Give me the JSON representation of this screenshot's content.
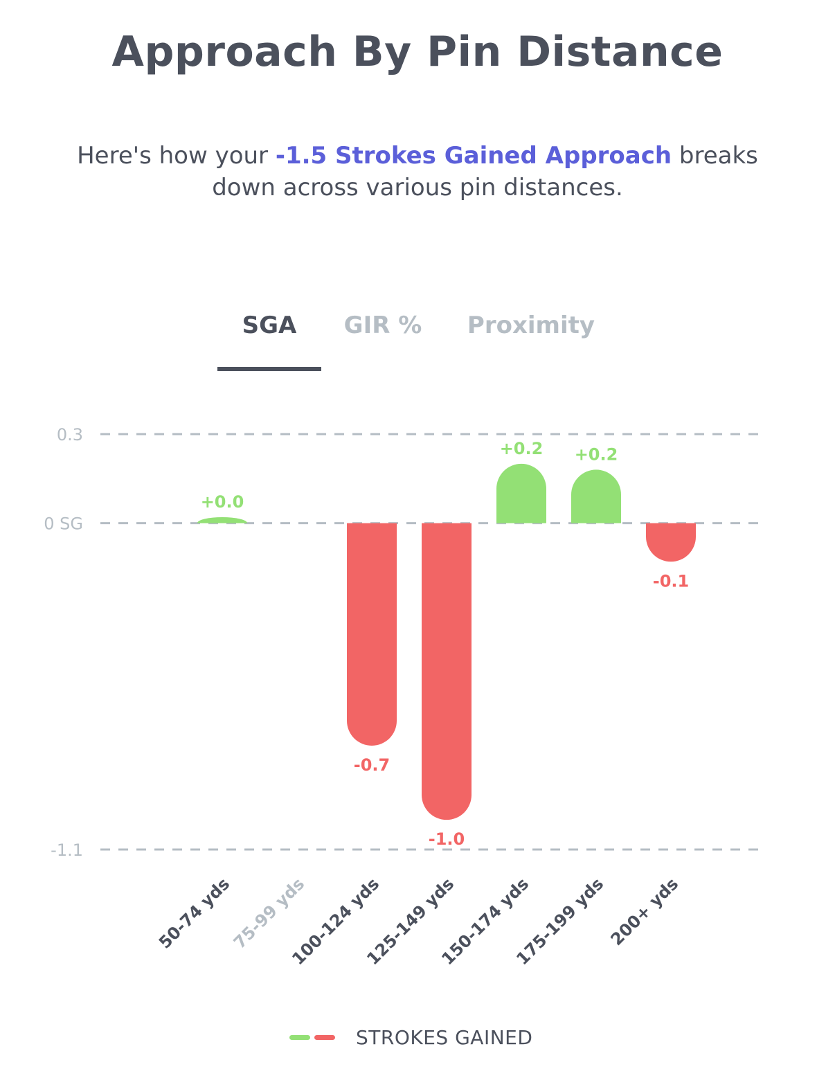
{
  "header": {
    "title": "Approach By Pin Distance",
    "subtitle_pre": "Here's how your ",
    "subtitle_highlight": "-1.5 Strokes Gained Approach",
    "subtitle_post": "  breaks down across various pin distances."
  },
  "tabs": [
    {
      "label": "SGA",
      "active": true
    },
    {
      "label": "GIR %",
      "active": false
    },
    {
      "label": "Proximity",
      "active": false
    }
  ],
  "colors": {
    "positive": "#93e075",
    "negative": "#f26565",
    "axis_text": "#b5bdc4",
    "gridline": "#b5bdc4",
    "label_text": "#4b505c",
    "highlight": "#5b5fd9"
  },
  "chart_data": {
    "type": "bar",
    "categories": [
      "50-74 yds",
      "75-99 yds",
      "100-124 yds",
      "125-149 yds",
      "150-174 yds",
      "175-199 yds",
      "200+ yds"
    ],
    "values": [
      0.02,
      null,
      -0.75,
      -1.0,
      0.2,
      0.18,
      -0.13
    ],
    "value_labels": [
      "+0.0",
      "",
      "-0.7",
      "-1.0",
      "+0.2",
      "+0.2",
      "-0.1"
    ],
    "category_active": [
      true,
      false,
      true,
      true,
      true,
      true,
      true
    ],
    "y_ticks": [
      {
        "value": 0.3,
        "label": "0.3"
      },
      {
        "value": 0,
        "label": "0 SG"
      },
      {
        "value": -1.1,
        "label": "-1.1"
      }
    ],
    "ylim": [
      -1.1,
      0.3
    ],
    "grid": true
  },
  "legend": {
    "label": "STROKES GAINED"
  }
}
